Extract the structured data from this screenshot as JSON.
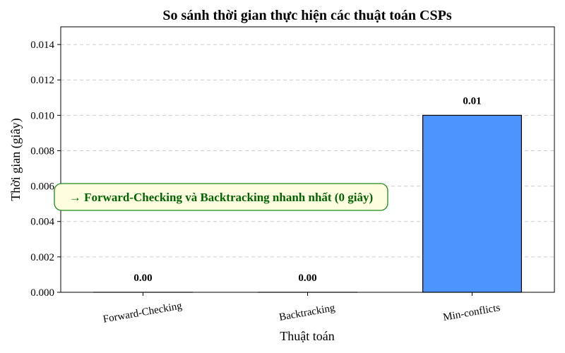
{
  "chart_data": {
    "type": "bar",
    "title": "So sánh thời gian thực hiện các thuật toán CSPs",
    "xlabel": "Thuật toán",
    "ylabel": "Thời gian (giây)",
    "categories": [
      "Forward-Checking",
      "Backtracking",
      "Min-conflicts"
    ],
    "values": [
      0.0,
      0.0,
      0.01
    ],
    "data_labels": [
      "0.00",
      "0.00",
      "0.01"
    ],
    "ylim": [
      0,
      0.015
    ],
    "yticks": [
      0.0,
      0.002,
      0.004,
      0.006,
      0.008,
      0.01,
      0.012,
      0.014
    ],
    "ytick_labels": [
      "0.000",
      "0.002",
      "0.004",
      "0.006",
      "0.008",
      "0.010",
      "0.012",
      "0.014"
    ],
    "grid": true,
    "bar_color": "#4d94ff",
    "annotation": {
      "text": "→ Forward-Checking và Backtracking nhanh nhất (0 giây)",
      "text_color": "#006400",
      "box_fill": "#fffde0",
      "box_border": "#1a8a1a"
    }
  }
}
